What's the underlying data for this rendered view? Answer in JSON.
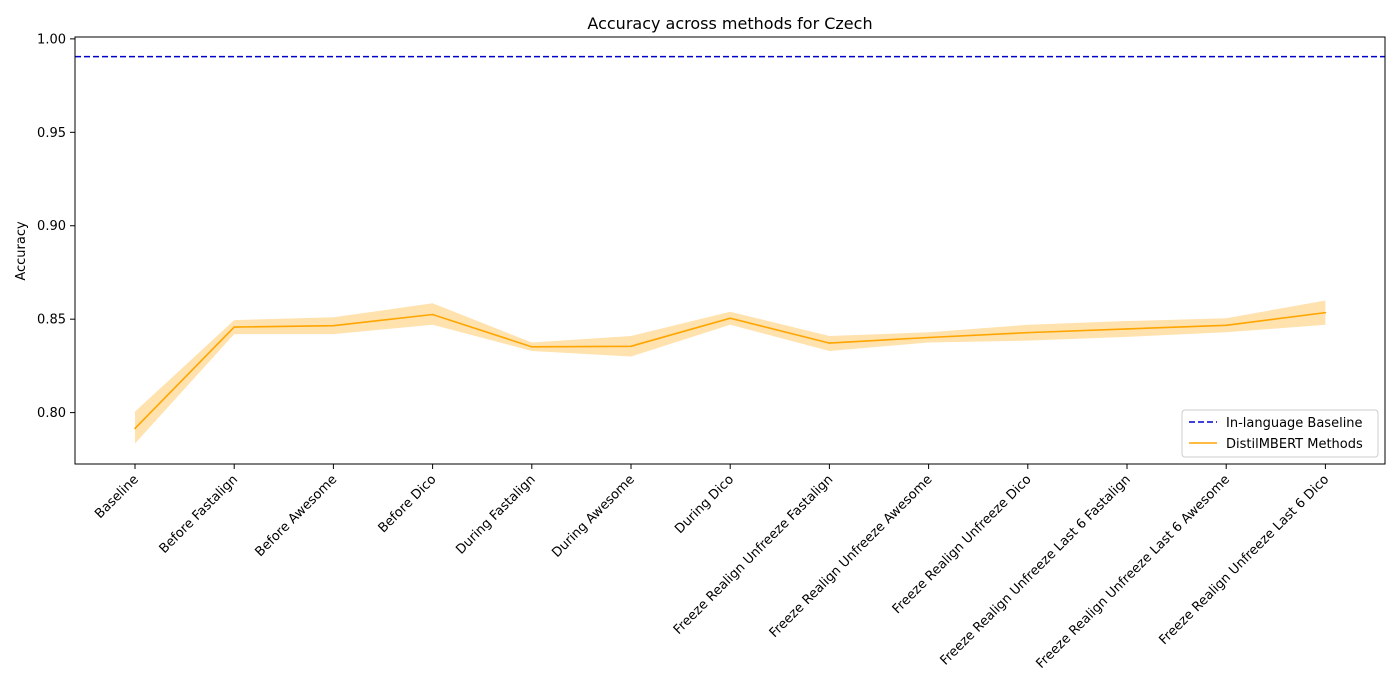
{
  "chart_data": {
    "type": "line",
    "title": "Accuracy across methods for Czech",
    "xlabel": "",
    "ylabel": "Accuracy",
    "categories": [
      "Baseline",
      "Before Fastalign",
      "Before Awesome",
      "Before Dico",
      "During Fastalign",
      "During Awesome",
      "During Dico",
      "Freeze Realign Unfreeze Fastalign",
      "Freeze Realign Unfreeze Awesome",
      "Freeze Realign Unfreeze Dico",
      "Freeze Realign Unfreeze Last 6 Fastalign",
      "Freeze Realign Unfreeze Last 6 Awesome",
      "Freeze Realign Unfreeze Last 6 Dico"
    ],
    "series": [
      {
        "name": "DistilMBERT Methods",
        "color": "#ffa500",
        "values": [
          0.7915,
          0.8458,
          0.8465,
          0.8525,
          0.8352,
          0.8355,
          0.8505,
          0.8372,
          0.8402,
          0.8428,
          0.8448,
          0.8467,
          0.8535
        ],
        "lower": [
          0.7835,
          0.842,
          0.842,
          0.847,
          0.833,
          0.83,
          0.847,
          0.833,
          0.8375,
          0.8385,
          0.8405,
          0.843,
          0.847
        ],
        "upper": [
          0.8005,
          0.8495,
          0.851,
          0.8585,
          0.8375,
          0.841,
          0.854,
          0.841,
          0.843,
          0.847,
          0.849,
          0.8505,
          0.86
        ]
      }
    ],
    "reference_lines": [
      {
        "name": "In-language Baseline",
        "value": 0.9905,
        "color": "#0000cc",
        "style": "dashed"
      }
    ],
    "yticks": [
      "0.80",
      "0.85",
      "0.90",
      "0.95",
      "1.00"
    ],
    "ylim": [
      0.7725,
      1.001
    ],
    "grid": false,
    "legend_position": "lower right"
  }
}
